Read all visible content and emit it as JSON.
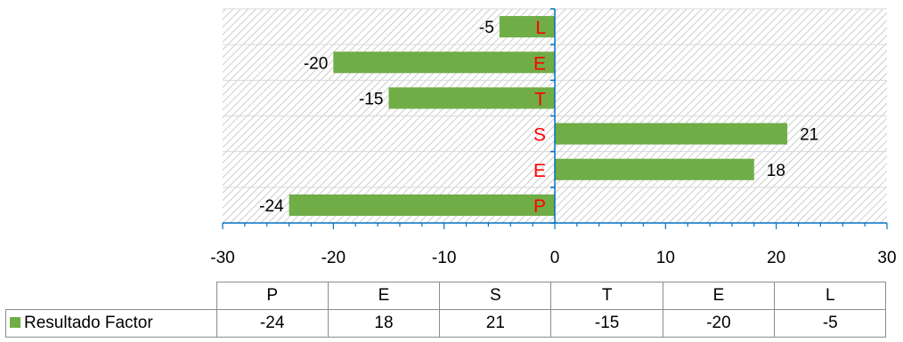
{
  "chart_data": {
    "type": "bar",
    "orientation": "horizontal",
    "categories": [
      "P",
      "E",
      "S",
      "T",
      "E",
      "L"
    ],
    "series": [
      {
        "name": "Resultado Factor",
        "values": [
          -24,
          18,
          21,
          -15,
          -20,
          -5
        ],
        "color": "#70ad47"
      }
    ],
    "xlim": [
      -30,
      30
    ],
    "x_ticks": [
      "-30",
      "-20",
      "-10",
      "0",
      "10",
      "20",
      "30"
    ],
    "category_label_color": "#ff0000",
    "axis_color": "#0070c0",
    "plot_background": "diagonal hatch, light gray",
    "grid": true,
    "data_labels": true,
    "data_table": true,
    "title": "",
    "xlabel": "",
    "ylabel": ""
  }
}
